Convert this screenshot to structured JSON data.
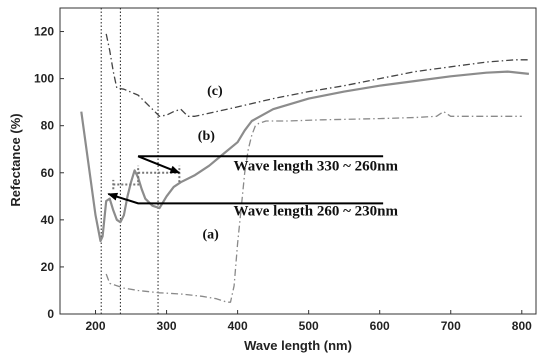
{
  "chart_data": {
    "type": "line",
    "xlabel": "Wave length (nm)",
    "ylabel": "Refectance (%)",
    "xlim": [
      150,
      820
    ],
    "ylim": [
      0,
      130
    ],
    "xticks": [
      200,
      300,
      400,
      500,
      600,
      700,
      800
    ],
    "yticks": [
      0,
      20,
      40,
      60,
      80,
      100,
      120
    ],
    "grid": false,
    "vlines": [
      208,
      235,
      288
    ],
    "series": [
      {
        "name": "(a)",
        "style": "dashdot",
        "color": "#8a8a8a",
        "points": [
          [
            215,
            17
          ],
          [
            220,
            13
          ],
          [
            240,
            11
          ],
          [
            260,
            10
          ],
          [
            290,
            9
          ],
          [
            320,
            8.5
          ],
          [
            350,
            7.5
          ],
          [
            370,
            6.5
          ],
          [
            385,
            5
          ],
          [
            390,
            5
          ],
          [
            395,
            12
          ],
          [
            400,
            30
          ],
          [
            405,
            45
          ],
          [
            410,
            60
          ],
          [
            415,
            70
          ],
          [
            420,
            76
          ],
          [
            425,
            80
          ],
          [
            430,
            81
          ],
          [
            440,
            82
          ],
          [
            470,
            82
          ],
          [
            520,
            82.5
          ],
          [
            600,
            83
          ],
          [
            650,
            83.5
          ],
          [
            680,
            84
          ],
          [
            690,
            86
          ],
          [
            700,
            84
          ],
          [
            750,
            84
          ],
          [
            800,
            84
          ]
        ]
      },
      {
        "name": "(b)",
        "style": "solid",
        "color": "#8c8c8c",
        "points": [
          [
            180,
            86
          ],
          [
            190,
            64
          ],
          [
            200,
            42
          ],
          [
            207,
            31
          ],
          [
            210,
            33
          ],
          [
            215,
            48
          ],
          [
            220,
            49
          ],
          [
            225,
            44
          ],
          [
            230,
            40
          ],
          [
            235,
            39
          ],
          [
            240,
            42
          ],
          [
            245,
            50
          ],
          [
            250,
            56
          ],
          [
            255,
            61
          ],
          [
            260,
            58
          ],
          [
            265,
            53
          ],
          [
            270,
            49
          ],
          [
            280,
            46
          ],
          [
            290,
            45
          ],
          [
            300,
            50
          ],
          [
            310,
            54
          ],
          [
            320,
            56
          ],
          [
            340,
            59
          ],
          [
            360,
            63
          ],
          [
            380,
            68
          ],
          [
            400,
            73
          ],
          [
            410,
            78
          ],
          [
            420,
            82
          ],
          [
            450,
            87
          ],
          [
            500,
            91.5
          ],
          [
            550,
            94.5
          ],
          [
            600,
            97
          ],
          [
            650,
            99
          ],
          [
            700,
            101
          ],
          [
            750,
            102.5
          ],
          [
            780,
            103
          ],
          [
            810,
            102
          ]
        ]
      },
      {
        "name": "(c)",
        "style": "dashdot",
        "color": "#444444",
        "points": [
          [
            215,
            119
          ],
          [
            220,
            112
          ],
          [
            225,
            103
          ],
          [
            230,
            96
          ],
          [
            240,
            95.5
          ],
          [
            260,
            93
          ],
          [
            280,
            87
          ],
          [
            290,
            84
          ],
          [
            300,
            84.5
          ],
          [
            310,
            86
          ],
          [
            320,
            87
          ],
          [
            330,
            84
          ],
          [
            340,
            84
          ],
          [
            370,
            86
          ],
          [
            400,
            88
          ],
          [
            450,
            91.5
          ],
          [
            500,
            94.5
          ],
          [
            550,
            97
          ],
          [
            600,
            100
          ],
          [
            650,
            103
          ],
          [
            700,
            105
          ],
          [
            750,
            107
          ],
          [
            790,
            108
          ],
          [
            810,
            108
          ]
        ]
      }
    ],
    "curve_labels": [
      {
        "text": "(c)",
        "x": 368,
        "y": 93
      },
      {
        "text": "(b)",
        "x": 356,
        "y": 74
      },
      {
        "text": "(a)",
        "x": 362,
        "y": 32
      }
    ],
    "annotations": [
      {
        "text": "Wave length 330 ~ 260nm",
        "text_x": 510,
        "text_y": 63,
        "arrow_from": [
          450,
          67
        ],
        "arrow_to": [
          318,
          60
        ]
      },
      {
        "text": "Wave length 260 ~ 230nm",
        "text_x": 510,
        "text_y": 44,
        "arrow_from": [
          450,
          47
        ],
        "arrow_to": [
          218,
          51
        ]
      }
    ],
    "dotted_bracket": {
      "y": 60,
      "x_from": 260,
      "x_to": 318,
      "side_ticks_y": [
        56,
        63
      ]
    },
    "dotted_bracket_small": {
      "y": 55,
      "x_from": 225,
      "x_to": 262
    }
  }
}
